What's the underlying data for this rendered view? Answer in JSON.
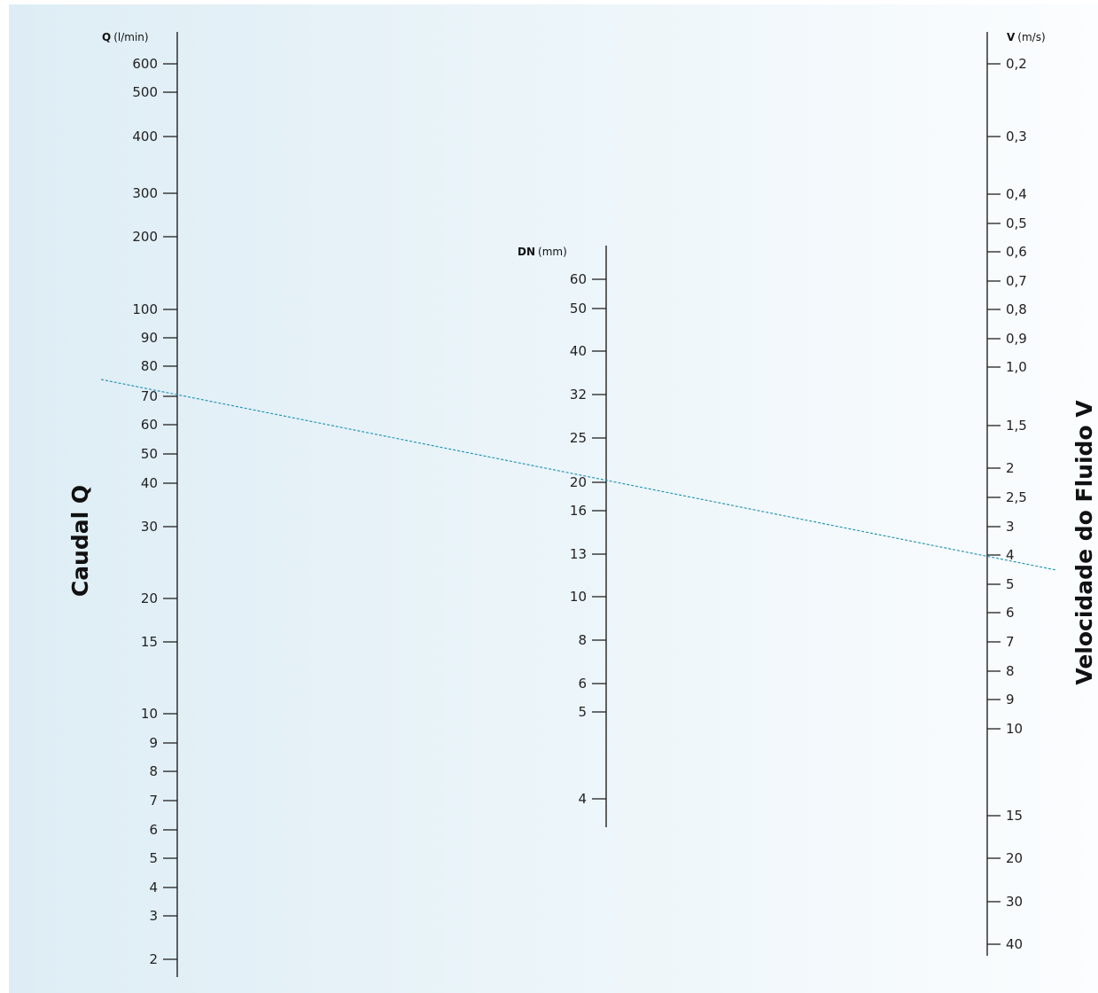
{
  "nomogram": {
    "q_axis": {
      "title": "Q",
      "unit": "(l/min)",
      "big_label": "Caudal Q",
      "ticks": [
        "600",
        "500",
        "400",
        "300",
        "200",
        "100",
        "90",
        "80",
        "70",
        "60",
        "50",
        "40",
        "30",
        "20",
        "15",
        "10",
        "9",
        "8",
        "7",
        "6",
        "5",
        "4",
        "3",
        "2"
      ]
    },
    "dn_axis": {
      "title": "DN",
      "unit": "(mm)",
      "ticks": [
        "60",
        "50",
        "40",
        "32",
        "25",
        "20",
        "16",
        "13",
        "10",
        "8",
        "6",
        "5",
        "4"
      ]
    },
    "v_axis": {
      "title": "V",
      "unit": "(m/s)",
      "big_label": "Velocidade do Fluido V",
      "ticks": [
        "0,2",
        "0,3",
        "0,4",
        "0,5",
        "0,6",
        "0,7",
        "0,8",
        "0,9",
        "1,0",
        "1,5",
        "2",
        "2,5",
        "3",
        "4",
        "5",
        "6",
        "7",
        "8",
        "9",
        "10",
        "15",
        "20",
        "30",
        "40"
      ]
    },
    "example_line": {
      "color": "#1a8fb0",
      "style": "dashed",
      "passes_through": {
        "q": "70",
        "dn": "20",
        "v": "4"
      }
    },
    "colors": {
      "background_left": "#deedf5",
      "background_right": "#fbfdfe",
      "axis": "#222222"
    }
  }
}
